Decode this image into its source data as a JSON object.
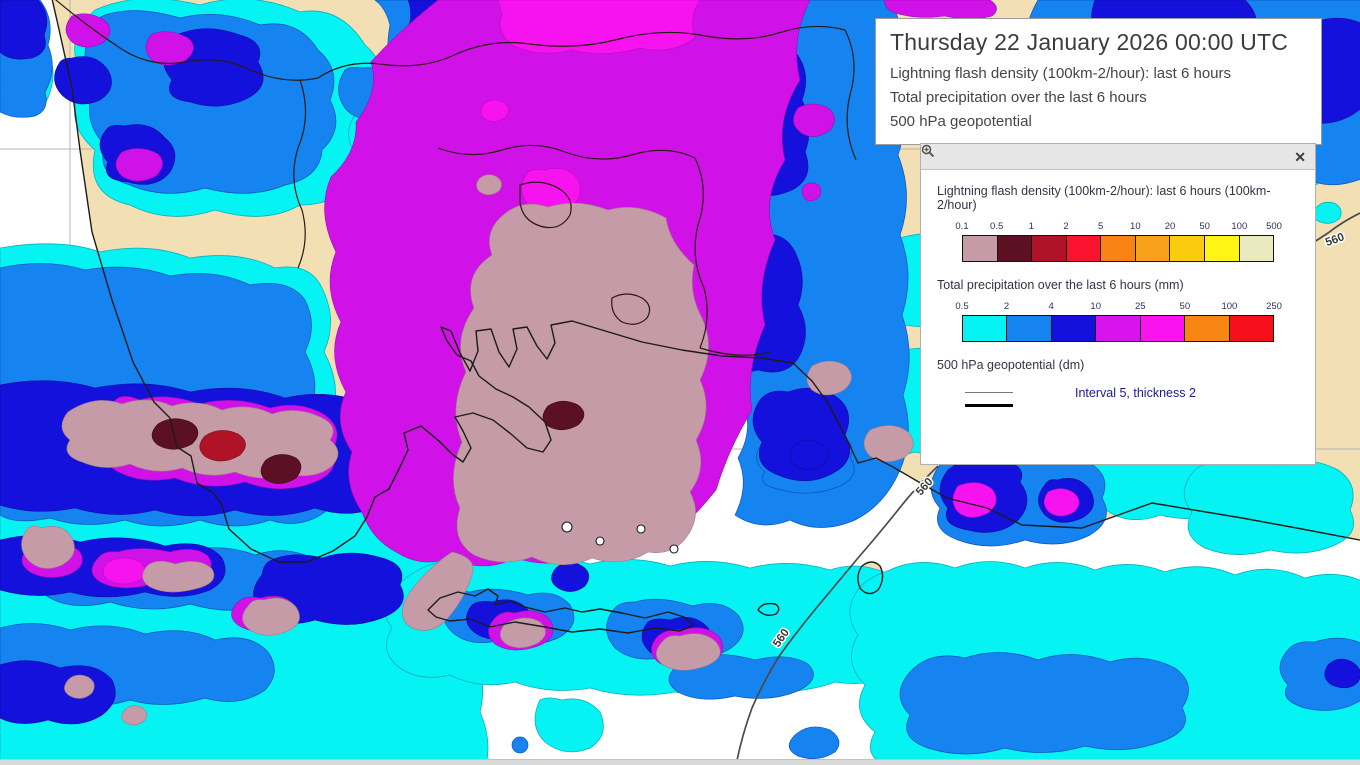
{
  "title_box": {
    "datetime": "Thursday 22 January 2026 00:00 UTC",
    "params": [
      "Lightning flash density (100km-2/hour): last 6 hours",
      "Total precipitation over the last 6 hours",
      "500 hPa geopotential"
    ]
  },
  "legend_panel": {
    "lightning": {
      "title": "Lightning flash density (100km-2/hour): last 6 hours (100km-2/hour)",
      "ticks": [
        "0.1",
        "0.5",
        "1",
        "2",
        "5",
        "10",
        "20",
        "50",
        "100",
        "500"
      ],
      "colors": [
        "#c49ba6",
        "#5c1023",
        "#b01228",
        "#fa1430",
        "#f88214",
        "#f9a01b",
        "#fbcb10",
        "#fdf514",
        "#ebe9c0"
      ]
    },
    "precip": {
      "title": "Total precipitation over the last 6 hours (mm)",
      "ticks": [
        "0.5",
        "2",
        "4",
        "10",
        "25",
        "50",
        "100",
        "250"
      ],
      "colors": [
        "#06f3f3",
        "#1583f0",
        "#1411dc",
        "#d813ee",
        "#f913ee",
        "#f88613",
        "#f7101c"
      ]
    },
    "geopotential": {
      "title": "500 hPa geopotential (dm)",
      "line_label": "Interval 5, thickness 2"
    },
    "close_label": "✕"
  },
  "map": {
    "contour_labels": [
      "560",
      "560",
      "560"
    ],
    "colors": {
      "land": "#f2dfb4",
      "sea": "#ffffff",
      "coast": "#1c1c1c",
      "border": "#2a1a14",
      "grid": "#b4b4b4",
      "contour": "#4a4a4a",
      "p-cyan": "#06f3f3",
      "p-blue": "#1583f0",
      "p-dblue": "#1411dc",
      "p-mag": "#d012e8",
      "p-pink": "#f713ef",
      "l-mauve": "#c49ba6",
      "l-maroon": "#5c1023",
      "l-dred": "#b01228"
    }
  }
}
